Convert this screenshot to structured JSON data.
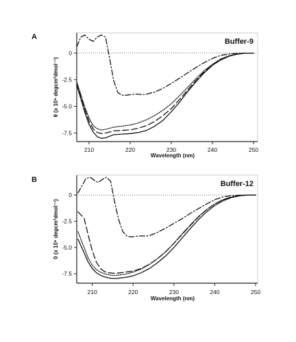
{
  "chart_data": [
    {
      "type": "line",
      "panel": "A",
      "title": "Buffer-9",
      "xlabel": "Wavelength (nm)",
      "ylabel": "θ (x 10⁶ degcm²dmol⁻¹)",
      "xlim": [
        207,
        251
      ],
      "ylim": [
        -8.3,
        1.9
      ],
      "xticks": [
        "210",
        "220",
        "230",
        "240",
        "250"
      ],
      "yticks": [
        "0",
        "-2.5",
        "-5.0",
        "-7.5"
      ],
      "zero_line": true,
      "series": [
        {
          "style": "solid",
          "x": [
            207,
            208,
            209,
            210,
            211,
            212,
            213,
            214,
            215,
            216,
            218,
            220,
            222,
            224,
            226,
            228,
            230,
            232,
            234,
            236,
            238,
            240,
            242,
            244,
            246,
            248,
            250
          ],
          "y": [
            -3.0,
            -4.3,
            -5.6,
            -6.7,
            -7.4,
            -7.85,
            -8.0,
            -7.95,
            -7.8,
            -7.65,
            -7.6,
            -7.55,
            -7.45,
            -7.25,
            -6.85,
            -6.3,
            -5.5,
            -4.6,
            -3.6,
            -2.7,
            -1.85,
            -1.15,
            -0.65,
            -0.3,
            -0.1,
            0.0,
            0.0
          ]
        },
        {
          "style": "dashed",
          "x": [
            207,
            208,
            209,
            210,
            211,
            212,
            213,
            214,
            215,
            216,
            218,
            220,
            222,
            224,
            226,
            228,
            230,
            232,
            234,
            236,
            238,
            240,
            242,
            244,
            246,
            248,
            250
          ],
          "y": [
            -2.8,
            -4.0,
            -5.3,
            -6.4,
            -7.1,
            -7.45,
            -7.55,
            -7.5,
            -7.4,
            -7.3,
            -7.25,
            -7.2,
            -7.05,
            -6.8,
            -6.4,
            -5.85,
            -5.2,
            -4.35,
            -3.45,
            -2.55,
            -1.75,
            -1.1,
            -0.6,
            -0.28,
            -0.1,
            0.0,
            0.0
          ]
        },
        {
          "style": "dotted",
          "x": [
            207,
            208,
            209,
            210,
            211,
            212,
            213,
            214,
            215,
            216,
            218,
            220,
            222,
            224,
            226,
            228,
            230,
            232,
            234,
            236,
            238,
            240,
            242,
            244,
            246,
            248,
            250
          ],
          "y": [
            -2.7,
            -3.9,
            -5.1,
            -6.1,
            -6.8,
            -7.1,
            -7.2,
            -7.15,
            -7.05,
            -6.95,
            -6.85,
            -6.75,
            -6.55,
            -6.25,
            -5.85,
            -5.35,
            -4.75,
            -4.0,
            -3.2,
            -2.4,
            -1.65,
            -1.05,
            -0.55,
            -0.25,
            -0.08,
            0.0,
            0.0
          ]
        },
        {
          "style": "dash-dot",
          "x": [
            207,
            208,
            209,
            210,
            211,
            212,
            213,
            214,
            215,
            216,
            217,
            218,
            219,
            220,
            221,
            222,
            223,
            224,
            226,
            228,
            230,
            232,
            234,
            236,
            238,
            240,
            242,
            244,
            246,
            248,
            250
          ],
          "y": [
            0.6,
            1.5,
            1.7,
            1.3,
            1.1,
            1.5,
            1.7,
            1.5,
            -0.5,
            -2.6,
            -3.7,
            -3.95,
            -3.95,
            -3.9,
            -3.85,
            -3.85,
            -3.9,
            -3.85,
            -3.65,
            -3.3,
            -2.85,
            -2.35,
            -1.85,
            -1.35,
            -0.9,
            -0.5,
            -0.22,
            -0.08,
            -0.02,
            0.0,
            0.0
          ]
        }
      ]
    },
    {
      "type": "line",
      "panel": "B",
      "title": "Buffer-12",
      "xlabel": "Wavelength (nm)",
      "ylabel": "0 (x 10⁶ degcm²dmol⁻¹)",
      "xlim": [
        206.2,
        250.5
      ],
      "ylim": [
        -8.4,
        1.9
      ],
      "xticks": [
        "210",
        "220",
        "230",
        "240",
        "250"
      ],
      "yticks": [
        "0",
        "-2.5",
        "-5.0",
        "-7.5"
      ],
      "zero_line": true,
      "series": [
        {
          "style": "solid",
          "x": [
            206.5,
            208,
            209,
            210,
            211,
            212,
            213,
            214,
            215,
            216,
            217,
            218,
            220,
            222,
            224,
            226,
            228,
            230,
            232,
            234,
            236,
            238,
            240,
            242,
            244,
            246,
            248,
            250
          ],
          "y": [
            -4.2,
            -5.5,
            -6.4,
            -7.0,
            -7.4,
            -7.65,
            -7.8,
            -7.9,
            -7.95,
            -7.95,
            -7.9,
            -7.85,
            -7.7,
            -7.4,
            -7.0,
            -6.45,
            -5.8,
            -5.0,
            -4.1,
            -3.2,
            -2.35,
            -1.6,
            -1.0,
            -0.55,
            -0.25,
            -0.08,
            0.0,
            0.0
          ]
        },
        {
          "style": "dashed",
          "x": [
            206.5,
            208,
            209,
            210,
            211,
            212,
            213,
            214,
            215,
            216,
            217,
            218,
            220,
            222,
            224,
            226,
            228,
            230,
            232,
            234,
            236,
            238,
            240,
            242,
            244,
            246,
            248,
            250
          ],
          "y": [
            -1.6,
            -2.2,
            -3.8,
            -5.3,
            -6.4,
            -7.0,
            -7.3,
            -7.4,
            -7.45,
            -7.45,
            -7.4,
            -7.35,
            -7.25,
            -7.0,
            -6.6,
            -6.05,
            -5.4,
            -4.6,
            -3.75,
            -2.9,
            -2.1,
            -1.4,
            -0.85,
            -0.45,
            -0.2,
            -0.06,
            0.0,
            0.0
          ]
        },
        {
          "style": "dotted",
          "x": [
            206.5,
            208,
            209,
            210,
            211,
            212,
            213,
            214,
            215,
            216,
            217,
            218,
            220,
            222,
            224,
            226,
            228,
            230,
            232,
            234,
            236,
            238,
            240,
            242,
            244,
            246,
            248,
            250
          ],
          "y": [
            -3.5,
            -5.0,
            -6.0,
            -6.7,
            -7.1,
            -7.35,
            -7.5,
            -7.6,
            -7.65,
            -7.65,
            -7.6,
            -7.55,
            -7.35,
            -7.05,
            -6.6,
            -6.05,
            -5.4,
            -4.6,
            -3.7,
            -2.85,
            -2.05,
            -1.4,
            -0.85,
            -0.45,
            -0.2,
            -0.06,
            0.0,
            0.0
          ]
        },
        {
          "style": "dash-dot",
          "x": [
            206.5,
            207.5,
            208.5,
            209.5,
            210.5,
            211.5,
            212.5,
            213.5,
            214.5,
            215.5,
            216.5,
            217.5,
            218.5,
            219.5,
            220.5,
            221.5,
            222.5,
            223.5,
            224.5,
            226,
            228,
            230,
            232,
            234,
            236,
            238,
            240,
            242,
            244,
            246,
            248,
            250
          ],
          "y": [
            0.2,
            0.9,
            1.6,
            1.7,
            1.4,
            1.2,
            1.5,
            1.7,
            1.3,
            -0.7,
            -2.4,
            -3.5,
            -3.9,
            -4.0,
            -3.95,
            -3.9,
            -3.9,
            -3.9,
            -3.8,
            -3.55,
            -3.15,
            -2.7,
            -2.25,
            -1.75,
            -1.3,
            -0.85,
            -0.45,
            -0.18,
            -0.06,
            -0.02,
            0.0,
            0.0
          ]
        }
      ]
    }
  ]
}
